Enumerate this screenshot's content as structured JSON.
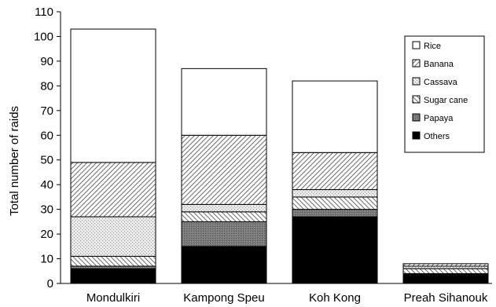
{
  "chart_data": {
    "type": "bar",
    "stacked": true,
    "title": "",
    "xlabel": "",
    "ylabel": "Total number of raids",
    "ylim": [
      0,
      110
    ],
    "yticks": [
      "0",
      "10",
      "20",
      "30",
      "40",
      "50",
      "60",
      "70",
      "80",
      "90",
      "100",
      "110"
    ],
    "grid": false,
    "legend_position": "right",
    "categories": [
      "Mondulkiri",
      "Kampong Speu",
      "Koh Kong",
      "Preah Sihanouk"
    ],
    "series": [
      {
        "name": "Others",
        "pattern": "solid-black",
        "values": [
          6,
          15,
          27,
          4
        ]
      },
      {
        "name": "Papaya",
        "pattern": "dark-gray-stipple",
        "values": [
          1,
          10,
          3,
          0
        ]
      },
      {
        "name": "Sugar cane",
        "pattern": "back-diagonal",
        "values": [
          4,
          4,
          5,
          2
        ]
      },
      {
        "name": "Cassava",
        "pattern": "light-gray-stipple",
        "values": [
          16,
          3,
          3,
          1
        ]
      },
      {
        "name": "Banana",
        "pattern": "forward-diagonal",
        "values": [
          22,
          28,
          15,
          1
        ]
      },
      {
        "name": "Rice",
        "pattern": "white",
        "values": [
          54,
          27,
          29,
          0
        ]
      }
    ],
    "legend_order": [
      "Rice",
      "Banana",
      "Cassava",
      "Sugar cane",
      "Papaya",
      "Others"
    ]
  }
}
